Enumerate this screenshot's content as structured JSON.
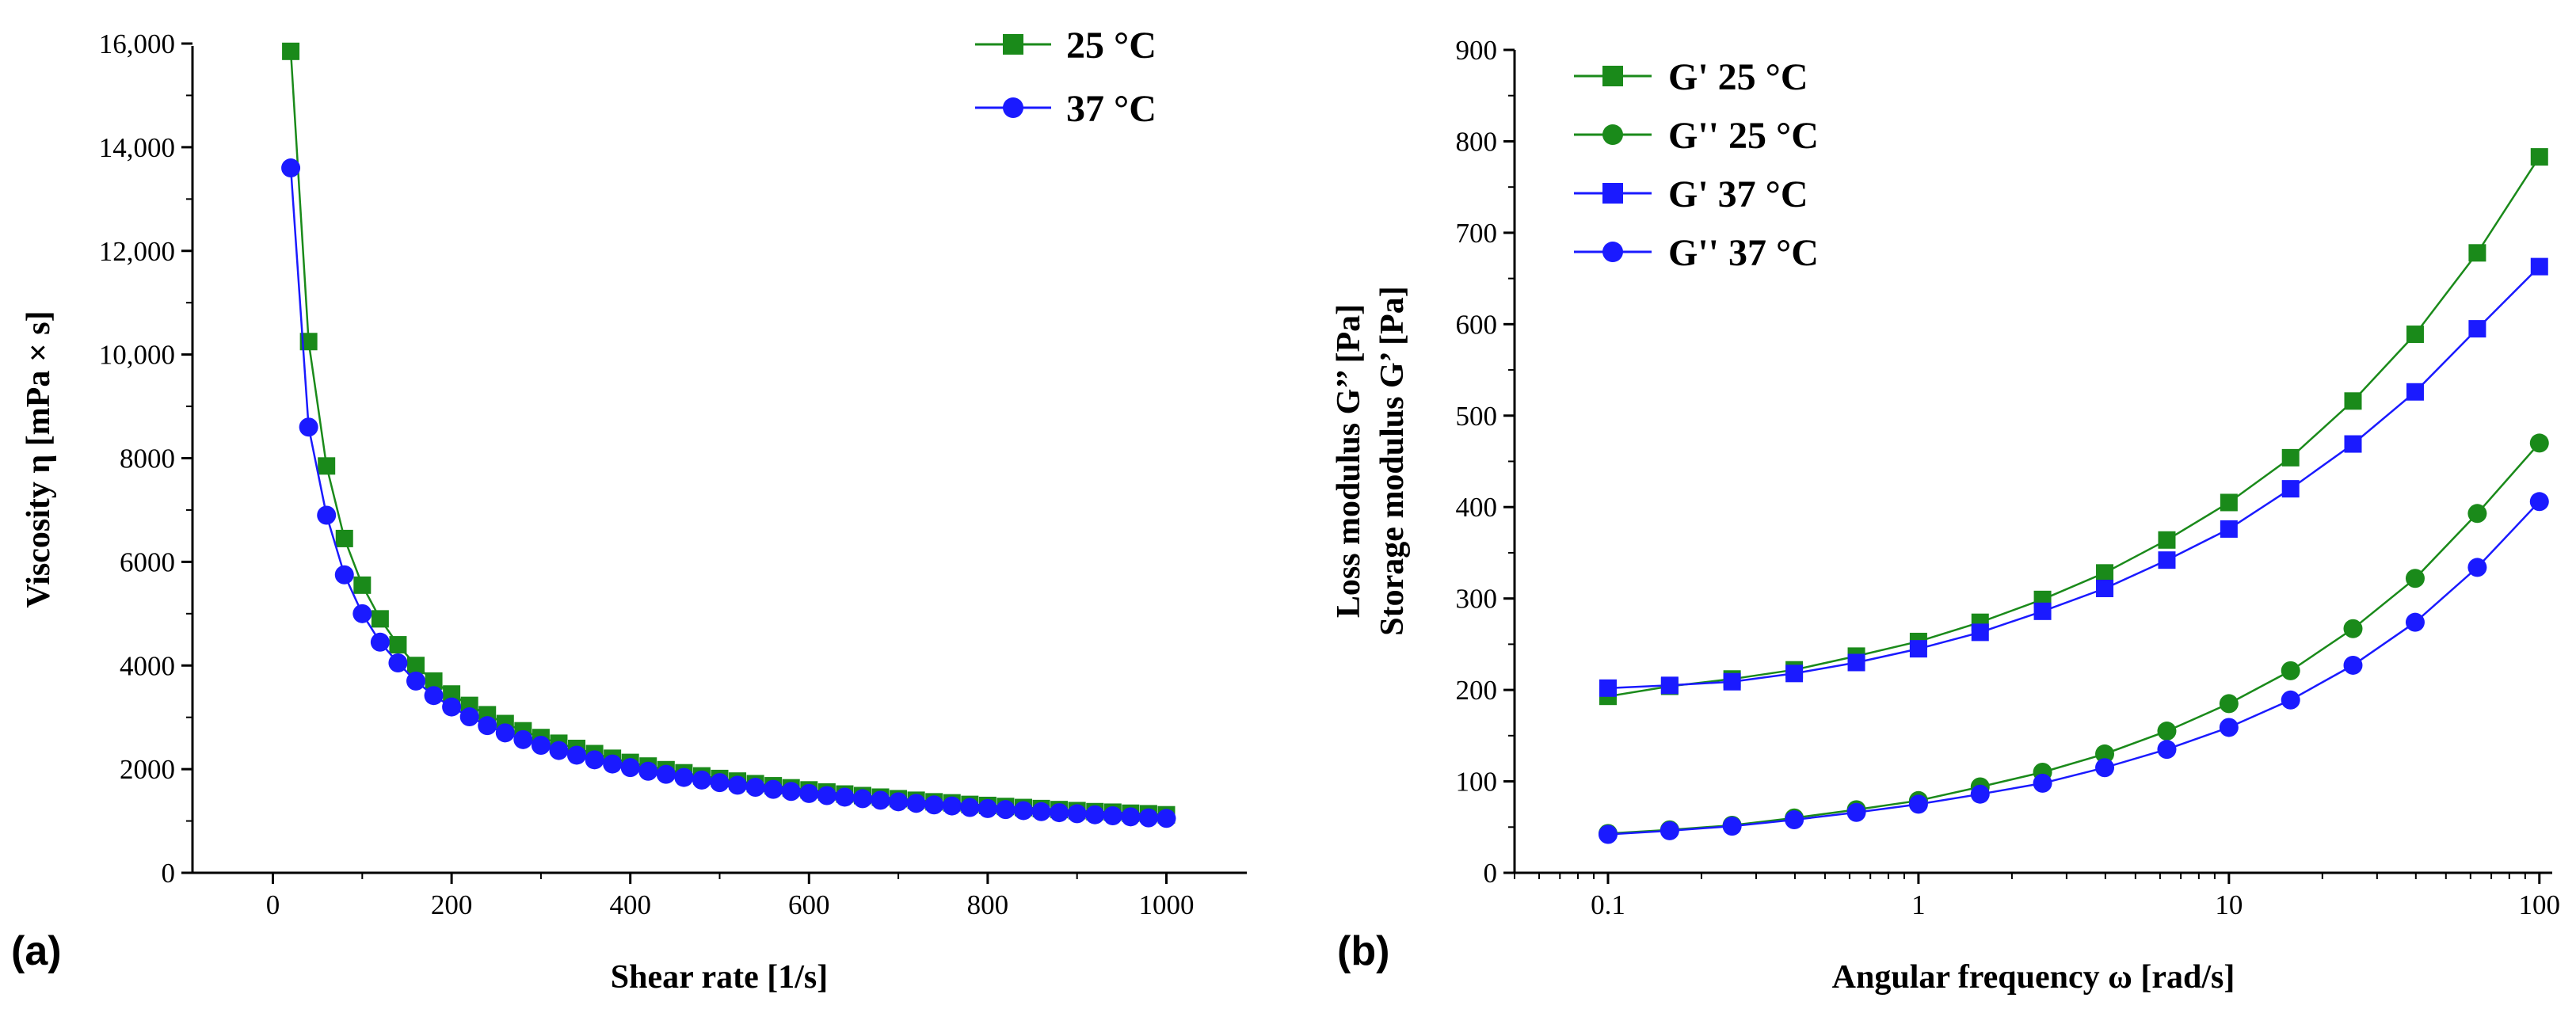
{
  "colors": {
    "green": "#1a8a1a",
    "blue": "#1a1aff",
    "axis": "#000000"
  },
  "chart_data": [
    {
      "panel_label": "(a)",
      "type": "line",
      "title": "",
      "xlabel": "Shear rate [1/s]",
      "ylabel": "Viscosity η [mPa × s]",
      "xlim": [
        -90,
        1090
      ],
      "ylim": [
        0,
        16000
      ],
      "xticks": [
        0,
        200,
        400,
        600,
        800,
        1000
      ],
      "xtick_labels": [
        "0",
        "200",
        "400",
        "600",
        "800",
        "1000"
      ],
      "yticks": [
        0,
        2000,
        4000,
        6000,
        8000,
        10000,
        12000,
        14000,
        16000
      ],
      "ytick_labels": [
        "0",
        "2000",
        "4000",
        "6000",
        "8000",
        "10,000",
        "12,000",
        "14,000",
        "16,000"
      ],
      "legend_position": "top-right",
      "series": [
        {
          "name": "25 °C",
          "color": "#1a8a1a",
          "marker": "square",
          "x": [
            20,
            40,
            60,
            80,
            100,
            120,
            140,
            160,
            180,
            200,
            220,
            240,
            260,
            280,
            300,
            320,
            340,
            360,
            380,
            400,
            420,
            440,
            460,
            480,
            500,
            520,
            540,
            560,
            580,
            600,
            620,
            640,
            660,
            680,
            700,
            720,
            740,
            760,
            780,
            800,
            820,
            840,
            860,
            880,
            900,
            920,
            940,
            960,
            980,
            1000
          ],
          "y": [
            15850,
            10250,
            7850,
            6450,
            5550,
            4900,
            4400,
            4000,
            3700,
            3450,
            3230,
            3050,
            2880,
            2740,
            2610,
            2500,
            2400,
            2300,
            2210,
            2130,
            2060,
            1990,
            1930,
            1870,
            1820,
            1770,
            1720,
            1680,
            1640,
            1600,
            1560,
            1520,
            1490,
            1460,
            1430,
            1400,
            1370,
            1350,
            1320,
            1300,
            1280,
            1260,
            1240,
            1220,
            1200,
            1180,
            1170,
            1150,
            1140,
            1120
          ]
        },
        {
          "name": "37 °C",
          "color": "#1a1aff",
          "marker": "circle",
          "x": [
            20,
            40,
            60,
            80,
            100,
            120,
            140,
            160,
            180,
            200,
            220,
            240,
            260,
            280,
            300,
            320,
            340,
            360,
            380,
            400,
            420,
            440,
            460,
            480,
            500,
            520,
            540,
            560,
            580,
            600,
            620,
            640,
            660,
            680,
            700,
            720,
            740,
            760,
            780,
            800,
            820,
            840,
            860,
            880,
            900,
            920,
            940,
            960,
            980,
            1000
          ],
          "y": [
            13600,
            8600,
            6900,
            5750,
            5000,
            4450,
            4050,
            3700,
            3420,
            3200,
            3010,
            2840,
            2700,
            2570,
            2460,
            2360,
            2270,
            2180,
            2100,
            2030,
            1960,
            1900,
            1840,
            1790,
            1740,
            1690,
            1650,
            1610,
            1570,
            1530,
            1490,
            1460,
            1430,
            1400,
            1370,
            1340,
            1310,
            1290,
            1260,
            1240,
            1220,
            1200,
            1180,
            1160,
            1140,
            1120,
            1100,
            1080,
            1060,
            1050
          ]
        }
      ]
    },
    {
      "panel_label": "(b)",
      "type": "line",
      "title": "",
      "xlabel": "Angular frequency ω [rad/s]",
      "ylabel": [
        "Storage modulus G’ [Pa]",
        "Loss modulus G’’ [Pa]"
      ],
      "xscale": "log",
      "xlim": [
        0.05,
        110
      ],
      "ylim": [
        0,
        900
      ],
      "xticks": [
        0.1,
        1,
        10,
        100
      ],
      "xtick_labels": [
        "0.1",
        "1",
        "10",
        "100"
      ],
      "yticks": [
        0,
        100,
        200,
        300,
        400,
        500,
        600,
        700,
        800,
        900
      ],
      "ytick_labels": [
        "0",
        "100",
        "200",
        "300",
        "400",
        "500",
        "600",
        "700",
        "800",
        "900"
      ],
      "legend_position": "top-left",
      "series": [
        {
          "name": "G' 25 °C",
          "color": "#1a8a1a",
          "marker": "square",
          "x": [
            0.1,
            0.158,
            0.251,
            0.398,
            0.631,
            1,
            1.58,
            2.51,
            3.98,
            6.31,
            10,
            15.8,
            25.1,
            39.8,
            63.1,
            100
          ],
          "y": [
            193,
            204,
            212,
            222,
            237,
            253,
            274,
            299,
            328,
            364,
            405,
            454,
            516,
            589,
            678,
            783
          ]
        },
        {
          "name": "G'' 25 °C",
          "color": "#1a8a1a",
          "marker": "circle",
          "x": [
            0.1,
            0.158,
            0.251,
            0.398,
            0.631,
            1,
            1.58,
            2.51,
            3.98,
            6.31,
            10,
            15.8,
            25.1,
            39.8,
            63.1,
            100
          ],
          "y": [
            43,
            47,
            52,
            60,
            69,
            79,
            94,
            110,
            130,
            155,
            185,
            221,
            267,
            322,
            393,
            470
          ]
        },
        {
          "name": "G' 37 °C",
          "color": "#1a1aff",
          "marker": "square",
          "x": [
            0.1,
            0.158,
            0.251,
            0.398,
            0.631,
            1,
            1.58,
            2.51,
            3.98,
            6.31,
            10,
            15.8,
            25.1,
            39.8,
            63.1,
            100
          ],
          "y": [
            202,
            205,
            209,
            218,
            230,
            245,
            263,
            286,
            311,
            342,
            376,
            420,
            469,
            526,
            595,
            663
          ]
        },
        {
          "name": "G'' 37 °C",
          "color": "#1a1aff",
          "marker": "circle",
          "x": [
            0.1,
            0.158,
            0.251,
            0.398,
            0.631,
            1,
            1.58,
            2.51,
            3.98,
            6.31,
            10,
            15.8,
            25.1,
            39.8,
            63.1,
            100
          ],
          "y": [
            42,
            46,
            51,
            58,
            66,
            75,
            86,
            98,
            115,
            135,
            159,
            189,
            227,
            274,
            334,
            406
          ]
        }
      ]
    }
  ]
}
